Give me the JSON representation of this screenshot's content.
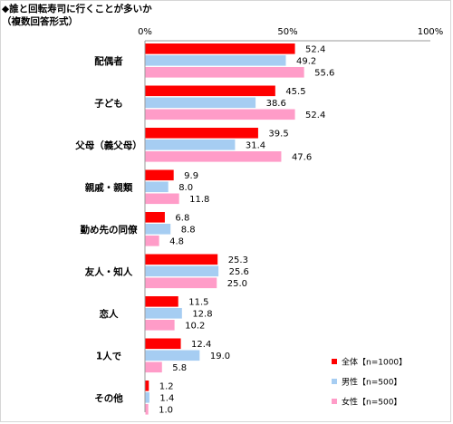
{
  "chart_data": {
    "type": "bar",
    "orientation": "horizontal",
    "title": "◆誰と回転寿司に行くことが多いか",
    "subtitle": "（複数回答形式）",
    "xlim": [
      0,
      100
    ],
    "xticks": [
      "0%",
      "50%",
      "100%"
    ],
    "grid": false,
    "legend_position": "bottom-right",
    "categories": [
      "配偶者",
      "子ども",
      "父母（義父母）",
      "親戚・親類",
      "勤め先の同僚",
      "友人・知人",
      "恋人",
      "1人で",
      "その他"
    ],
    "series": [
      {
        "name": "全体【n=1000】",
        "color": "#ff0000",
        "values": [
          52.4,
          45.5,
          39.5,
          9.9,
          6.8,
          25.3,
          11.5,
          12.4,
          1.2
        ],
        "labels": [
          "52.4",
          "45.5",
          "39.5",
          "9.9",
          "6.8",
          "25.3",
          "11.5",
          "12.4",
          "1.2"
        ]
      },
      {
        "name": "男性【n=500】",
        "color": "#a6cdf2",
        "values": [
          49.2,
          38.6,
          31.4,
          8.0,
          8.8,
          25.6,
          12.8,
          19.0,
          1.4
        ],
        "labels": [
          "49.2",
          "38.6",
          "31.4",
          "8.0",
          "8.8",
          "25.6",
          "12.8",
          "19.0",
          "1.4"
        ]
      },
      {
        "name": "女性【n=500】",
        "color": "#ff9cc8",
        "values": [
          55.6,
          52.4,
          47.6,
          11.8,
          4.8,
          25.0,
          10.2,
          5.8,
          1.0
        ],
        "labels": [
          "55.6",
          "52.4",
          "47.6",
          "11.8",
          "4.8",
          "25.0",
          "10.2",
          "5.8",
          "1.0"
        ]
      }
    ]
  }
}
